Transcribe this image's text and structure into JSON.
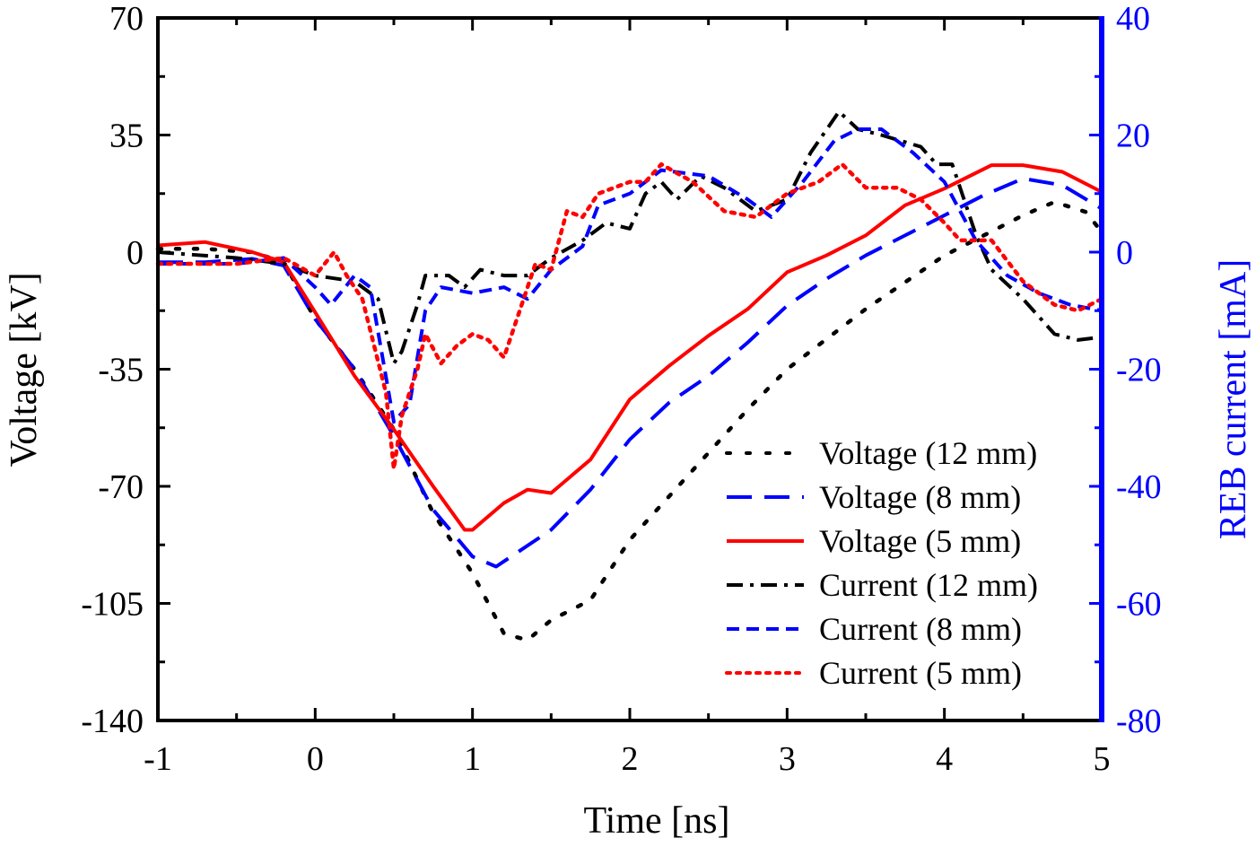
{
  "chart_data": {
    "type": "line",
    "xlabel": "Time [ns]",
    "ylabel_left": "Voltage [kV]",
    "ylabel_right": "REB current [mA]",
    "xlim": [
      -1,
      5
    ],
    "ylim_left": [
      -140,
      70
    ],
    "ylim_right": [
      -80,
      40
    ],
    "xticks": [
      -1,
      0,
      1,
      2,
      3,
      4,
      5
    ],
    "yticks_left": [
      70,
      35,
      0,
      -35,
      -70,
      -105,
      -140
    ],
    "yticks_right": [
      40,
      20,
      0,
      -20,
      -40,
      -60,
      -80
    ],
    "grid": false,
    "legend_position": "bottom-right",
    "colors": {
      "axis_left": "#000000",
      "axis_right": "#0000ff"
    },
    "series": [
      {
        "name": "Voltage (12 mm)",
        "axis": "left",
        "color": "#000000",
        "style": "dotted",
        "x": [
          -1,
          -0.7,
          -0.4,
          -0.2,
          0,
          0.25,
          0.5,
          0.75,
          1.0,
          1.2,
          1.35,
          1.5,
          1.75,
          2.0,
          2.25,
          2.5,
          2.75,
          3.0,
          3.25,
          3.5,
          3.75,
          4.0,
          4.25,
          4.5,
          4.7,
          4.9,
          5.0
        ],
        "y": [
          1,
          1,
          0,
          -3,
          -20,
          -35,
          -53,
          -78,
          -96,
          -114,
          -116,
          -110,
          -104,
          -86,
          -73,
          -60,
          -47,
          -35,
          -26,
          -17,
          -9,
          -1,
          5,
          11,
          15,
          12,
          6
        ]
      },
      {
        "name": "Voltage (8 mm)",
        "axis": "left",
        "color": "#0000ff",
        "style": "dashed",
        "x": [
          -1,
          -0.7,
          -0.4,
          -0.2,
          0,
          0.25,
          0.5,
          0.75,
          1.0,
          1.15,
          1.5,
          1.75,
          2.0,
          2.25,
          2.5,
          2.75,
          3.0,
          3.25,
          3.5,
          3.75,
          4.0,
          4.25,
          4.5,
          4.75,
          5.0
        ],
        "y": [
          -3,
          -3,
          -2,
          -4,
          -20,
          -35,
          -55,
          -77,
          -91,
          -94,
          -83,
          -71,
          -56,
          -45,
          -37,
          -27,
          -16,
          -8,
          -1,
          5,
          11,
          17,
          22,
          20,
          13
        ]
      },
      {
        "name": "Voltage (5 mm)",
        "axis": "left",
        "color": "#ff0000",
        "style": "solid",
        "x": [
          -1,
          -0.7,
          -0.4,
          -0.2,
          0,
          0.25,
          0.5,
          0.75,
          0.95,
          1.0,
          1.2,
          1.35,
          1.5,
          1.75,
          2.0,
          2.25,
          2.5,
          2.75,
          3.0,
          3.25,
          3.5,
          3.75,
          4.0,
          4.3,
          4.5,
          4.75,
          5.0
        ],
        "y": [
          2,
          3,
          0,
          -3,
          -18,
          -37,
          -53,
          -70,
          -83,
          -83,
          -75,
          -71,
          -72,
          -62,
          -44,
          -34,
          -25,
          -17,
          -6,
          -1,
          5,
          14,
          19,
          26,
          26,
          24,
          18
        ]
      },
      {
        "name": "Current (12 mm)",
        "axis": "right",
        "color": "#000000",
        "style": "dash-dot",
        "x": [
          -1,
          -0.5,
          -0.2,
          0,
          0.25,
          0.4,
          0.5,
          0.55,
          0.65,
          0.7,
          0.85,
          0.95,
          1.05,
          1.2,
          1.35,
          1.5,
          1.7,
          1.85,
          2.0,
          2.1,
          2.2,
          2.3,
          2.45,
          2.6,
          2.8,
          3.0,
          3.15,
          3.33,
          3.45,
          3.6,
          3.85,
          3.95,
          4.05,
          4.2,
          4.3,
          4.5,
          4.7,
          4.85,
          5.0
        ],
        "y": [
          0,
          -1,
          -2,
          -4,
          -5,
          -8,
          -19,
          -17,
          -9,
          -4,
          -4,
          -6,
          -3,
          -4,
          -4,
          -1,
          2,
          5,
          4,
          10,
          12,
          9,
          13,
          11,
          7,
          9,
          17,
          24,
          21,
          20,
          18,
          15,
          15,
          3,
          -3,
          -8,
          -14,
          -15,
          -14.5
        ]
      },
      {
        "name": "Current (8 mm)",
        "axis": "right",
        "color": "#0000ff",
        "style": "short-dash",
        "x": [
          -1,
          -0.5,
          -0.2,
          0,
          0.1,
          0.25,
          0.35,
          0.5,
          0.6,
          0.7,
          0.8,
          1.0,
          1.2,
          1.35,
          1.5,
          1.7,
          1.8,
          2.0,
          2.2,
          2.5,
          2.75,
          2.9,
          3.1,
          3.3,
          3.45,
          3.6,
          3.8,
          4.0,
          4.2,
          4.4,
          4.6,
          4.8,
          5.0
        ],
        "y": [
          -2,
          -2,
          -1,
          -6,
          -9,
          -4,
          -6,
          -29,
          -26,
          -10,
          -6,
          -7,
          -6,
          -8,
          -3,
          1,
          8,
          10,
          14,
          13,
          9,
          6,
          12,
          19,
          21,
          21,
          17,
          12,
          2,
          -4,
          -7,
          -9,
          -10
        ]
      },
      {
        "name": "Current (5 mm)",
        "axis": "right",
        "color": "#ff0000",
        "style": "dotted",
        "x": [
          -1,
          -0.5,
          -0.2,
          0,
          0.12,
          0.2,
          0.3,
          0.45,
          0.5,
          0.55,
          0.65,
          0.7,
          0.8,
          0.9,
          1.0,
          1.1,
          1.2,
          1.3,
          1.4,
          1.5,
          1.6,
          1.7,
          1.8,
          2.0,
          2.1,
          2.2,
          2.4,
          2.6,
          2.8,
          3.0,
          3.2,
          3.35,
          3.5,
          3.7,
          3.85,
          4.0,
          4.1,
          4.3,
          4.5,
          4.7,
          4.85,
          5.0
        ],
        "y": [
          -2,
          -2,
          -1,
          -4,
          0,
          -4,
          -8,
          -24,
          -37,
          -28,
          -20,
          -14,
          -19,
          -16,
          -14,
          -15,
          -18,
          -10,
          -2,
          -3,
          7,
          6,
          10,
          12,
          12,
          15,
          12,
          7,
          6,
          10,
          12,
          15,
          11,
          11,
          9,
          5,
          2,
          2,
          -5,
          -9,
          -10,
          -8
        ]
      }
    ]
  }
}
